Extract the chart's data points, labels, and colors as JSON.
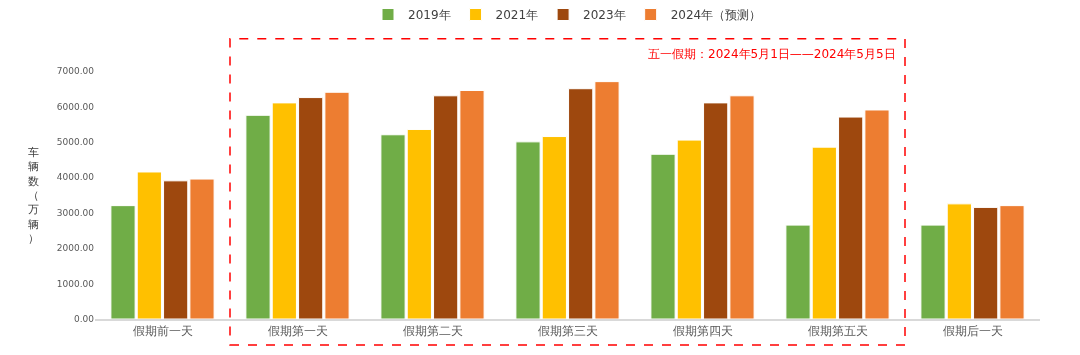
{
  "chart_data": {
    "type": "bar",
    "categories": [
      "假期前一天",
      "假期第一天",
      "假期第二天",
      "假期第三天",
      "假期第四天",
      "假期第五天",
      "假期后一天"
    ],
    "series": [
      {
        "name": "2019年",
        "color": "#70ad47",
        "values": [
          3200,
          5750,
          5200,
          5000,
          4650,
          2650,
          2650
        ]
      },
      {
        "name": "2021年",
        "color": "#ffc000",
        "values": [
          4150,
          6100,
          5350,
          5150,
          5050,
          4850,
          3250
        ]
      },
      {
        "name": "2023年",
        "color": "#9e480e",
        "values": [
          3900,
          6250,
          6300,
          6500,
          6100,
          5700,
          3150
        ]
      },
      {
        "name": "2024年（预测）",
        "color": "#ed7d31",
        "values": [
          3950,
          6400,
          6450,
          6700,
          6300,
          5900,
          3200
        ]
      }
    ],
    "ylabel": "车辆数（万辆）",
    "ylim": [
      0,
      7000
    ],
    "yticks": [
      {
        "value": 0,
        "label": "0.00"
      },
      {
        "value": 1000,
        "label": "1000.00"
      },
      {
        "value": 2000,
        "label": "2000.00"
      },
      {
        "value": 3000,
        "label": "3000.00"
      },
      {
        "value": 4000,
        "label": "4000.00"
      },
      {
        "value": 5000,
        "label": "5000.00"
      },
      {
        "value": 6000,
        "label": "6000.00"
      },
      {
        "value": 7000,
        "label": "7000.00"
      }
    ],
    "annotations": [
      "五一假期：2024年5月1日——2024年5月5日"
    ],
    "grid": false,
    "legend": "top"
  }
}
